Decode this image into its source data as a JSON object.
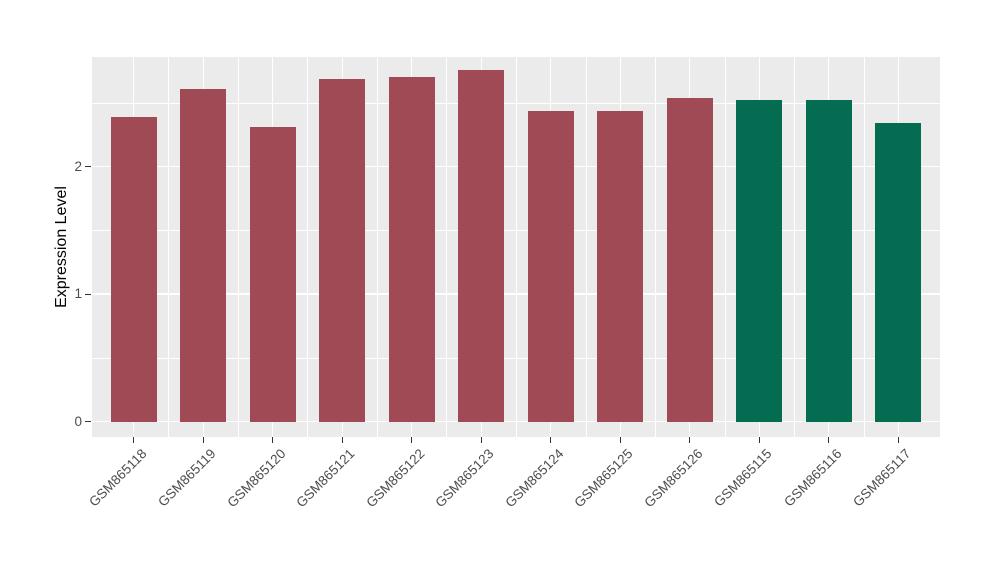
{
  "chart_data": {
    "type": "bar",
    "title": "",
    "xlabel": "",
    "ylabel": "Expression Level",
    "ylim": [
      -0.12,
      2.86
    ],
    "yticks": [
      0,
      1,
      2
    ],
    "minor_yticks": [
      0.5,
      1.5,
      2.5
    ],
    "grid": true,
    "legend": "none",
    "panel_bg": "#ebebeb",
    "grid_color": "#ffffff",
    "tick_color": "#333333",
    "tick_label_color": "#4d4d4d",
    "group_colors": {
      "group1": "#a04a55",
      "group2": "#046c51"
    },
    "bars": [
      {
        "label": "GSM865118",
        "value": 2.39,
        "color": "#a04a55"
      },
      {
        "label": "GSM865119",
        "value": 2.61,
        "color": "#a04a55"
      },
      {
        "label": "GSM865120",
        "value": 2.31,
        "color": "#a04a55"
      },
      {
        "label": "GSM865121",
        "value": 2.69,
        "color": "#a04a55"
      },
      {
        "label": "GSM865122",
        "value": 2.7,
        "color": "#a04a55"
      },
      {
        "label": "GSM865123",
        "value": 2.76,
        "color": "#a04a55"
      },
      {
        "label": "GSM865124",
        "value": 2.44,
        "color": "#a04a55"
      },
      {
        "label": "GSM865125",
        "value": 2.44,
        "color": "#a04a55"
      },
      {
        "label": "GSM865126",
        "value": 2.54,
        "color": "#a04a55"
      },
      {
        "label": "GSM865115",
        "value": 2.52,
        "color": "#046c51"
      },
      {
        "label": "GSM865116",
        "value": 2.52,
        "color": "#046c51"
      },
      {
        "label": "GSM865117",
        "value": 2.34,
        "color": "#046c51"
      }
    ]
  }
}
